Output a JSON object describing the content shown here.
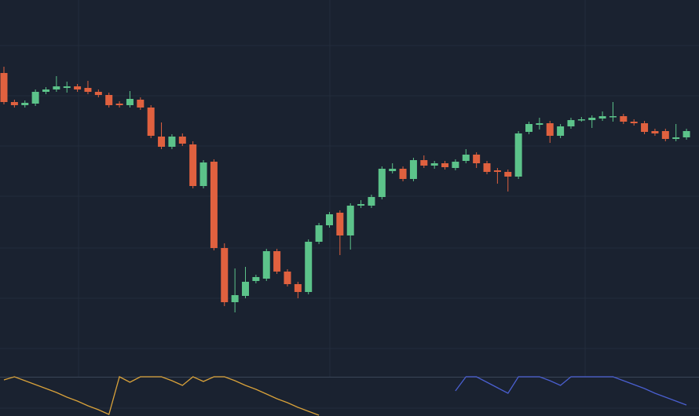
{
  "chart_data": [
    {
      "type": "candlestick",
      "up_color": "#5cc38a",
      "down_color": "#e0613f",
      "ylim": [
        0,
        480
      ],
      "open": [
        387,
        350,
        346,
        348,
        363,
        366,
        368,
        370,
        368,
        363,
        359,
        348,
        346,
        353,
        343,
        306,
        293,
        306,
        296,
        243,
        274,
        164,
        95,
        103,
        122,
        125,
        160,
        134,
        118,
        108,
        172,
        193,
        209,
        180,
        218,
        218,
        229,
        262,
        265,
        252,
        276,
        269,
        272,
        266,
        275,
        283,
        272,
        263,
        261,
        255,
        312,
        321,
        323,
        307,
        319,
        327,
        327,
        329,
        331,
        332,
        325,
        323,
        313,
        313,
        303,
        305
      ],
      "high": [
        395,
        353,
        352,
        366,
        369,
        383,
        376,
        373,
        377,
        366,
        362,
        351,
        364,
        356,
        346,
        324,
        309,
        310,
        300,
        276,
        277,
        170,
        138,
        140,
        130,
        163,
        163,
        137,
        121,
        175,
        196,
        210,
        212,
        221,
        225,
        232,
        268,
        272,
        268,
        279,
        282,
        275,
        275,
        277,
        290,
        286,
        275,
        266,
        264,
        313,
        325,
        330,
        326,
        322,
        330,
        331,
        333,
        338,
        350,
        335,
        328,
        326,
        316,
        316,
        322,
        316
      ],
      "low": [
        347,
        343,
        343,
        345,
        360,
        363,
        362,
        363,
        360,
        356,
        343,
        343,
        343,
        340,
        304,
        290,
        290,
        294,
        240,
        240,
        161,
        90,
        82,
        100,
        119,
        122,
        131,
        115,
        100,
        105,
        169,
        190,
        155,
        162,
        215,
        215,
        226,
        259,
        249,
        249,
        266,
        265,
        264,
        263,
        272,
        266,
        258,
        246,
        236,
        252,
        309,
        315,
        298,
        304,
        316,
        325,
        317,
        326,
        325,
        322,
        320,
        309,
        307,
        300,
        300,
        302
      ],
      "close": [
        350,
        346,
        349,
        363,
        366,
        370,
        370,
        366,
        363,
        359,
        346,
        346,
        354,
        343,
        307,
        293,
        306,
        297,
        243,
        273,
        164,
        95,
        104,
        121,
        127,
        160,
        134,
        118,
        108,
        172,
        193,
        207,
        180,
        218,
        220,
        229,
        265,
        265,
        252,
        276,
        269,
        272,
        267,
        274,
        283,
        272,
        261,
        261,
        255,
        310,
        322,
        323,
        307,
        319,
        327,
        328,
        330,
        332,
        332,
        325,
        323,
        312,
        310,
        303,
        305,
        313
      ]
    },
    {
      "type": "line",
      "ylim": [
        0,
        50
      ],
      "series": [
        {
          "color": "#d9a23a",
          "values": [
            46,
            50,
            45,
            40,
            35,
            30,
            24,
            19,
            13,
            8,
            2,
            50,
            43,
            50,
            50,
            50,
            45,
            39,
            50,
            44,
            50,
            50,
            45,
            39,
            34,
            28,
            22,
            17,
            11,
            6,
            1,
            null,
            null,
            null,
            null,
            null,
            null,
            null,
            null,
            null,
            null,
            null,
            null,
            null,
            null,
            null,
            null,
            null,
            null,
            null,
            null,
            null,
            null,
            null,
            null,
            null,
            null,
            null,
            null,
            null,
            null,
            null,
            null,
            null,
            null,
            null
          ]
        },
        {
          "color": "#4a5fd0",
          "values": [
            null,
            null,
            null,
            null,
            null,
            null,
            null,
            null,
            null,
            null,
            null,
            null,
            null,
            null,
            null,
            null,
            null,
            null,
            null,
            null,
            null,
            null,
            null,
            null,
            null,
            null,
            null,
            null,
            null,
            null,
            null,
            null,
            null,
            null,
            null,
            null,
            null,
            null,
            null,
            null,
            null,
            null,
            null,
            32,
            50,
            50,
            43,
            36,
            29,
            50,
            50,
            50,
            45,
            39,
            50,
            50,
            50,
            50,
            50,
            45,
            40,
            35,
            29,
            24,
            19,
            14
          ]
        }
      ]
    }
  ]
}
